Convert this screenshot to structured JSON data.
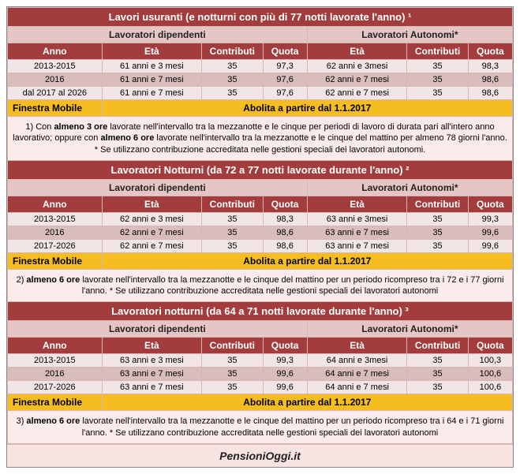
{
  "sections": [
    {
      "title": "Lavori usuranti (e notturni con più di 77 notti lavorate l'anno) ¹",
      "subheads": [
        "Lavoratori dipendenti",
        "Lavoratori Autonomi*"
      ],
      "cols": [
        "Anno",
        "Età",
        "Contributi",
        "Quota",
        "Età",
        "Contributi",
        "Quota"
      ],
      "rows": [
        [
          "2013-2015",
          "61 anni e 3 mesi",
          "35",
          "97,3",
          "62 anni e 3mesi",
          "35",
          "98,3"
        ],
        [
          "2016",
          "61 anni e 7 mesi",
          "35",
          "97,6",
          "62 anni e 7 mesi",
          "35",
          "98,6"
        ],
        [
          "dal 2017 al 2026",
          "61 anni e 7 mesi",
          "35",
          "97,6",
          "62 anni e 7 mesi",
          "35",
          "98,6"
        ]
      ],
      "finestra_label": "Finestra Mobile",
      "finestra_text": "Abolita a partire dal 1.1.2017",
      "note": "1) Con almeno 3 ore lavorate nell'intervallo tra la mezzanotte e le cinque per periodi di lavoro di durata pari all'intero anno lavorativo; oppure con almeno 6 ore lavorate nell'intervallo tra la mezzanotte e le cinque del mattino per almeno 78 giorni l'anno. * Se utilizzano contribuzione accreditata nelle gestioni speciali dei lavoratori autonomi."
    },
    {
      "title": "Lavoratori Notturni (da 72 a 77 notti lavorate durante l'anno) ²",
      "subheads": [
        "Lavoratori dipendenti",
        "Lavoratori Autonomi*"
      ],
      "cols": [
        "Anno",
        "Età",
        "Contributi",
        "Quota",
        "Età",
        "Contributi",
        "Quota"
      ],
      "rows": [
        [
          "2013-2015",
          "62 anni e 3 mesi",
          "35",
          "98,3",
          "63 anni e 3mesi",
          "35",
          "99,3"
        ],
        [
          "2016",
          "62 anni e 7 mesi",
          "35",
          "98,6",
          "63 anni e 7 mesi",
          "35",
          "99,6"
        ],
        [
          "2017-2026",
          "62 anni e 7 mesi",
          "35",
          "98,6",
          "63 anni e 7 mesi",
          "35",
          "99,6"
        ]
      ],
      "finestra_label": "Finestra Mobile",
      "finestra_text": "Abolita a partire dal 1.1.2017",
      "note": "2) almeno 6 ore lavorate nell'intervallo tra la mezzanotte e le cinque del mattino per un periodo ricompreso tra i 72 e i 77 giorni l'anno. * Se utilizzano contribuzione accreditata nelle gestioni speciali dei lavoratori autonomi"
    },
    {
      "title": "Lavoratori notturni (da 64 a 71 notti lavorate durante l'anno) ³",
      "subheads": [
        "Lavoratori dipendenti",
        "Lavoratori Autonomi*"
      ],
      "cols": [
        "Anno",
        "Età",
        "Contributi",
        "Quota",
        "Età",
        "Contributi",
        "Quota"
      ],
      "rows": [
        [
          "2013-2015",
          "63 anni e 3 mesi",
          "35",
          "99,3",
          "64 anni e 3mesi",
          "35",
          "100,3"
        ],
        [
          "2016",
          "63 anni e 7 mesi",
          "35",
          "99,6",
          "64 anni e 7 mesi",
          "35",
          "100,6"
        ],
        [
          "2017-2026",
          "63 anni e 7 mesi",
          "35",
          "99,6",
          "64 anni e 7 mesi",
          "35",
          "100,6"
        ]
      ],
      "finestra_label": "Finestra Mobile",
      "finestra_text": "Abolita a partire dal 1.1.2017",
      "note": "3) almeno 6 ore lavorate nell'intervallo tra la mezzanotte e le cinque del mattino per un periodo ricompreso tra i 64 e i 71 giorni l'anno. * Se utilizzano contribuzione accreditata nelle gestioni speciali dei lavoratori autonomi"
    }
  ],
  "footer": "PensioniOggi.it",
  "colwidths": [
    "17%",
    "18%",
    "11%",
    "8%",
    "18%",
    "11%",
    "8%"
  ]
}
